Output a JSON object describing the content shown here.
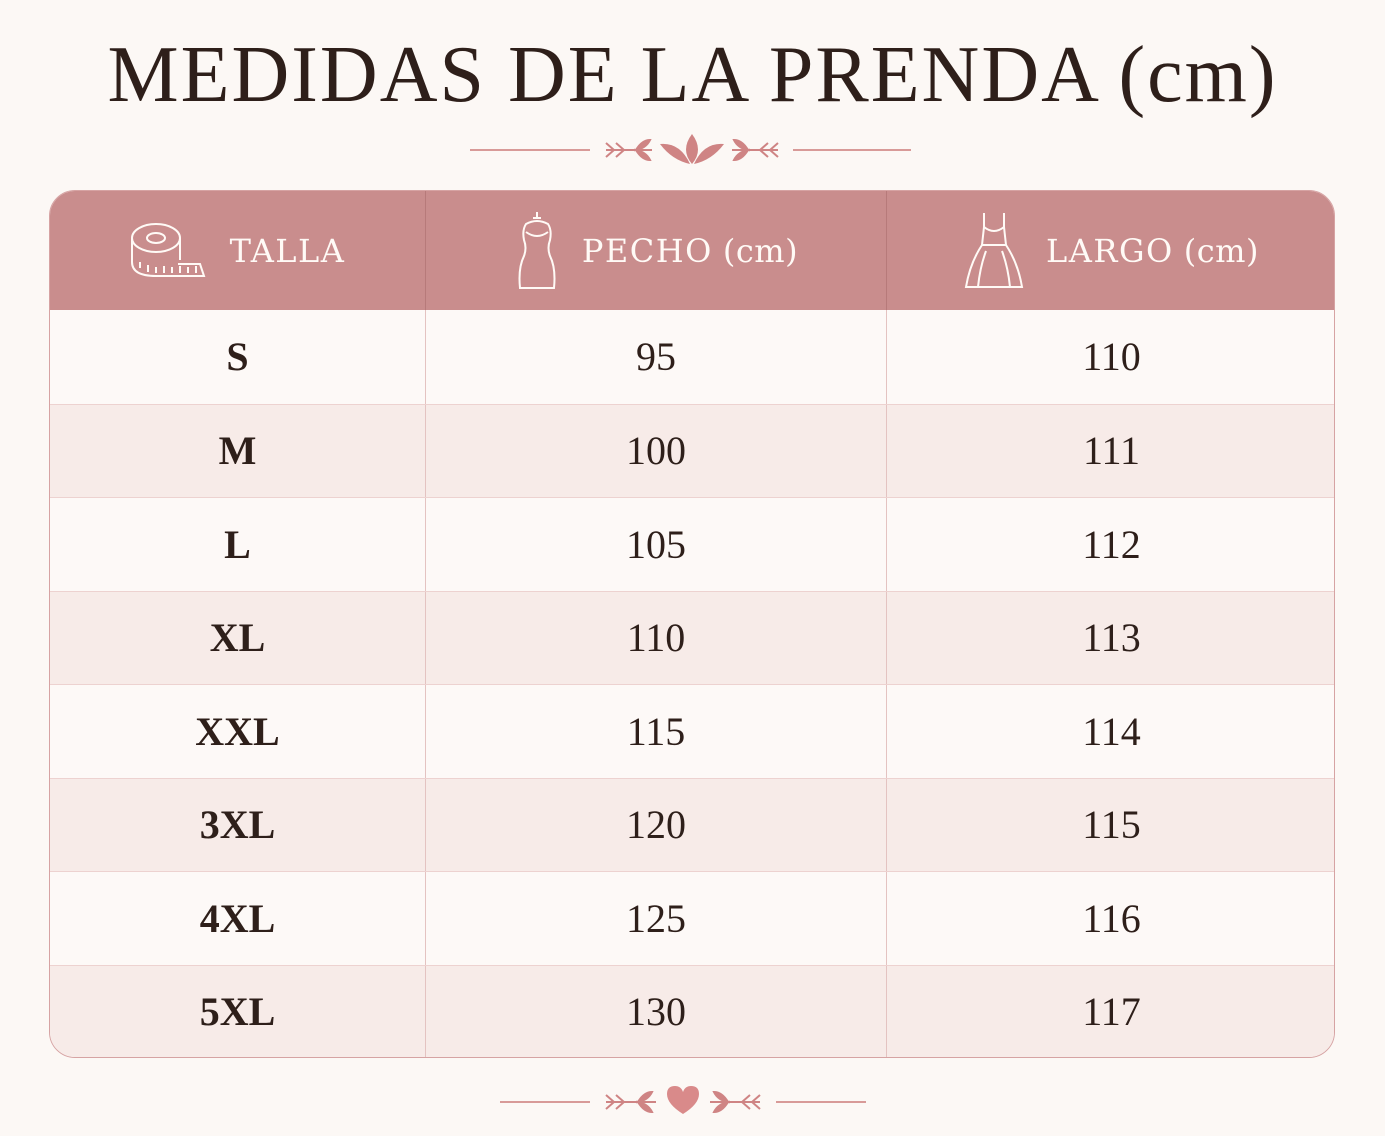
{
  "title": "MEDIDAS DE LA PRENDA (cm)",
  "colors": {
    "background": "#fcf8f5",
    "header": "#c98d8d",
    "row_alt": "#f7ebe8",
    "accent": "#d68b8b",
    "text": "#2e1f1a"
  },
  "table": {
    "columns": [
      {
        "label": "TALLA",
        "unit": "",
        "icon": "measuring-tape-icon"
      },
      {
        "label": "PECHO",
        "unit": "(cm)",
        "icon": "dress-form-icon"
      },
      {
        "label": "LARGO",
        "unit": "(cm)",
        "icon": "dress-icon"
      }
    ],
    "rows": [
      {
        "talla": "S",
        "pecho": "95",
        "largo": "110"
      },
      {
        "talla": "M",
        "pecho": "100",
        "largo": "111"
      },
      {
        "talla": "L",
        "pecho": "105",
        "largo": "112"
      },
      {
        "talla": "XL",
        "pecho": "110",
        "largo": "113"
      },
      {
        "talla": "XXL",
        "pecho": "115",
        "largo": "114"
      },
      {
        "talla": "3XL",
        "pecho": "120",
        "largo": "115"
      },
      {
        "talla": "4XL",
        "pecho": "125",
        "largo": "116"
      },
      {
        "talla": "5XL",
        "pecho": "130",
        "largo": "117"
      }
    ]
  }
}
